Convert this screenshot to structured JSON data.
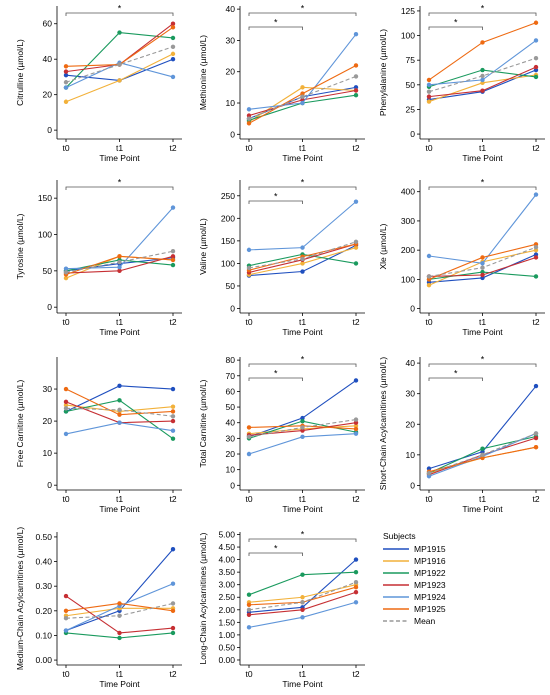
{
  "chart_data": {
    "type": "line",
    "x_categories": [
      "t0",
      "t1",
      "t2"
    ],
    "xlabel": "Time Point",
    "legend": {
      "title": "Subjects",
      "placement": "right of bottom row",
      "entries": [
        {
          "name": "MP1915",
          "color": "#1f4fbf",
          "dashed": false
        },
        {
          "name": "MP1916",
          "color": "#f2b13a",
          "dashed": false
        },
        {
          "name": "MP1922",
          "color": "#1a9a5e",
          "dashed": false
        },
        {
          "name": "MP1923",
          "color": "#c62f33",
          "dashed": false
        },
        {
          "name": "MP1924",
          "color": "#5f95d9",
          "dashed": false
        },
        {
          "name": "MP1925",
          "color": "#ee6a12",
          "dashed": false
        },
        {
          "name": "Mean",
          "color": "#999999",
          "dashed": true
        }
      ]
    },
    "panels": [
      {
        "ylabel": "Citrulline (µmol/L)",
        "ylim": [
          -5,
          70
        ],
        "yticks": [
          0,
          20,
          40,
          60
        ],
        "tick_labels": [
          "0",
          "20",
          "40",
          "60"
        ],
        "series": [
          {
            "name": "MP1915",
            "values": [
              31,
              28,
              40
            ]
          },
          {
            "name": "MP1916",
            "values": [
              16,
              28,
              43
            ]
          },
          {
            "name": "MP1922",
            "values": [
              24,
              55,
              52
            ]
          },
          {
            "name": "MP1923",
            "values": [
              33,
              37,
              60
            ]
          },
          {
            "name": "MP1924",
            "values": [
              24,
              38,
              30
            ]
          },
          {
            "name": "MP1925",
            "values": [
              36,
              37,
              58
            ]
          },
          {
            "name": "Mean",
            "values": [
              27,
              37,
              47
            ]
          }
        ],
        "sig": [
          {
            "from": 0,
            "to": 2,
            "label": "*"
          }
        ]
      },
      {
        "ylabel": "Methionine (µmol/L)",
        "ylim": [
          -1.5,
          41
        ],
        "yticks": [
          0,
          10,
          20,
          30,
          40
        ],
        "tick_labels": [
          "0",
          "10",
          "20",
          "30",
          "40"
        ],
        "series": [
          {
            "name": "MP1915",
            "values": [
              5,
              12,
              15
            ]
          },
          {
            "name": "MP1916",
            "values": [
              4,
              15,
              14
            ]
          },
          {
            "name": "MP1922",
            "values": [
              4.5,
              10,
              12.5
            ]
          },
          {
            "name": "MP1923",
            "values": [
              6,
              11,
              14
            ]
          },
          {
            "name": "MP1924",
            "values": [
              8,
              10,
              32
            ]
          },
          {
            "name": "MP1925",
            "values": [
              3.5,
              13,
              22
            ]
          },
          {
            "name": "Mean",
            "values": [
              5,
              12,
              18.5
            ]
          }
        ],
        "sig": [
          {
            "from": 0,
            "to": 2,
            "label": "*"
          },
          {
            "from": 0,
            "to": 1,
            "label": "*"
          }
        ]
      },
      {
        "ylabel": "Phenylalanine (µmol/L)",
        "ylim": [
          -5,
          130
        ],
        "yticks": [
          0,
          25,
          50,
          75,
          100,
          125
        ],
        "tick_labels": [
          "0",
          "25",
          "50",
          "75",
          "100",
          "125"
        ],
        "series": [
          {
            "name": "MP1915",
            "values": [
              35,
              43,
              65
            ]
          },
          {
            "name": "MP1916",
            "values": [
              33,
              52,
              60
            ]
          },
          {
            "name": "MP1922",
            "values": [
              48,
              65,
              58
            ]
          },
          {
            "name": "MP1923",
            "values": [
              38,
              44,
              68
            ]
          },
          {
            "name": "MP1924",
            "values": [
              50,
              55,
              95
            ]
          },
          {
            "name": "MP1925",
            "values": [
              55,
              93,
              113
            ]
          },
          {
            "name": "Mean",
            "values": [
              43,
              59,
              77
            ]
          }
        ],
        "sig": [
          {
            "from": 0,
            "to": 2,
            "label": "*"
          },
          {
            "from": 0,
            "to": 1,
            "label": "*"
          }
        ]
      },
      {
        "ylabel": "Tyrosine (µmol/L)",
        "ylim": [
          -8,
          175
        ],
        "yticks": [
          0,
          50,
          100,
          150
        ],
        "tick_labels": [
          "0",
          "50",
          "100",
          "150"
        ],
        "series": [
          {
            "name": "MP1915",
            "values": [
              50,
              60,
              68
            ]
          },
          {
            "name": "MP1916",
            "values": [
              40,
              70,
              65
            ]
          },
          {
            "name": "MP1922",
            "values": [
              50,
              65,
              58
            ]
          },
          {
            "name": "MP1923",
            "values": [
              47,
              50,
              70
            ]
          },
          {
            "name": "MP1924",
            "values": [
              53,
              55,
              137
            ]
          },
          {
            "name": "MP1925",
            "values": [
              45,
              70,
              65
            ]
          },
          {
            "name": "Mean",
            "values": [
              48,
              62,
              77
            ]
          }
        ],
        "sig": [
          {
            "from": 0,
            "to": 2,
            "label": "*"
          }
        ]
      },
      {
        "ylabel": "Valine (µmol/L)",
        "ylim": [
          -10,
          285
        ],
        "yticks": [
          0,
          50,
          100,
          150,
          200,
          250
        ],
        "tick_labels": [
          "0",
          "50",
          "100",
          "150",
          "200",
          "250"
        ],
        "series": [
          {
            "name": "MP1915",
            "values": [
              73,
              82,
              140
            ]
          },
          {
            "name": "MP1916",
            "values": [
              75,
              100,
              135
            ]
          },
          {
            "name": "MP1922",
            "values": [
              95,
              120,
              100
            ]
          },
          {
            "name": "MP1923",
            "values": [
              80,
              108,
              143
            ]
          },
          {
            "name": "MP1924",
            "values": [
              130,
              135,
              237
            ]
          },
          {
            "name": "MP1925",
            "values": [
              85,
              115,
              143
            ]
          },
          {
            "name": "Mean",
            "values": [
              90,
              110,
              148
            ]
          }
        ],
        "sig": [
          {
            "from": 0,
            "to": 2,
            "label": "*"
          },
          {
            "from": 0,
            "to": 1,
            "label": "*"
          }
        ]
      },
      {
        "ylabel": "Xle (µmol/L)",
        "ylim": [
          -15,
          440
        ],
        "yticks": [
          0,
          100,
          200,
          300,
          400
        ],
        "tick_labels": [
          "0",
          "100",
          "200",
          "300",
          "400"
        ],
        "series": [
          {
            "name": "MP1915",
            "values": [
              90,
              105,
              185
            ]
          },
          {
            "name": "MP1916",
            "values": [
              80,
              160,
              200
            ]
          },
          {
            "name": "MP1922",
            "values": [
              100,
              125,
              110
            ]
          },
          {
            "name": "MP1923",
            "values": [
              110,
              115,
              175
            ]
          },
          {
            "name": "MP1924",
            "values": [
              180,
              155,
              390
            ]
          },
          {
            "name": "MP1925",
            "values": [
              100,
              175,
              220
            ]
          },
          {
            "name": "Mean",
            "values": [
              110,
              140,
              210
            ]
          }
        ],
        "sig": [
          {
            "from": 0,
            "to": 2,
            "label": "*"
          }
        ]
      },
      {
        "ylabel": "Free Carnitine (µmol/L)",
        "ylim": [
          -1.5,
          40
        ],
        "yticks": [
          0,
          10,
          20,
          30
        ],
        "tick_labels": [
          "0",
          "10",
          "20",
          "30"
        ],
        "series": [
          {
            "name": "MP1915",
            "values": [
              23,
              31,
              30
            ]
          },
          {
            "name": "MP1916",
            "values": [
              25,
              23,
              24.5
            ]
          },
          {
            "name": "MP1922",
            "values": [
              23,
              26.5,
              14.5
            ]
          },
          {
            "name": "MP1923",
            "values": [
              26,
              19.5,
              20
            ]
          },
          {
            "name": "MP1924",
            "values": [
              16,
              19.5,
              17
            ]
          },
          {
            "name": "MP1925",
            "values": [
              30,
              22,
              23
            ]
          },
          {
            "name": "Mean",
            "values": [
              24,
              23.5,
              21.5
            ]
          }
        ],
        "sig": []
      },
      {
        "ylabel": "Total Carnitine (µmol/L)",
        "ylim": [
          -3,
          82
        ],
        "yticks": [
          0,
          10,
          20,
          30,
          40,
          50,
          60,
          70,
          80
        ],
        "tick_labels": [
          "0",
          "10",
          "20",
          "30",
          "40",
          "50",
          "60",
          "70",
          "80"
        ],
        "series": [
          {
            "name": "MP1915",
            "values": [
              31,
              43,
              67
            ]
          },
          {
            "name": "MP1916",
            "values": [
              33,
              36,
              38
            ]
          },
          {
            "name": "MP1922",
            "values": [
              30,
              41,
              34
            ]
          },
          {
            "name": "MP1923",
            "values": [
              32,
              35,
              40
            ]
          },
          {
            "name": "MP1924",
            "values": [
              20,
              31,
              33
            ]
          },
          {
            "name": "MP1925",
            "values": [
              37,
              38,
              36
            ]
          },
          {
            "name": "Mean",
            "values": [
              31,
              37,
              42
            ]
          }
        ],
        "sig": [
          {
            "from": 0,
            "to": 2,
            "label": "*"
          },
          {
            "from": 0,
            "to": 1,
            "label": "*"
          }
        ]
      },
      {
        "ylabel": "Short-Chain Acylcarnitines (µmol/L)",
        "ylim": [
          -1.5,
          42
        ],
        "yticks": [
          0,
          10,
          20,
          30,
          40
        ],
        "tick_labels": [
          "0",
          "10",
          "20",
          "30",
          "40"
        ],
        "series": [
          {
            "name": "MP1915",
            "values": [
              5.5,
              11,
              32.5
            ]
          },
          {
            "name": "MP1916",
            "values": [
              4,
              9,
              12.5
            ]
          },
          {
            "name": "MP1922",
            "values": [
              4,
              12,
              16
            ]
          },
          {
            "name": "MP1923",
            "values": [
              3.5,
              10,
              15.5
            ]
          },
          {
            "name": "MP1924",
            "values": [
              3,
              9.5,
              17
            ]
          },
          {
            "name": "MP1925",
            "values": [
              4.5,
              9,
              12.5
            ]
          },
          {
            "name": "Mean",
            "values": [
              4,
              10,
              17
            ]
          }
        ],
        "sig": [
          {
            "from": 0,
            "to": 2,
            "label": "*"
          },
          {
            "from": 0,
            "to": 1,
            "label": "*"
          }
        ]
      },
      {
        "ylabel": "Medium-Chain Acylcarnitines (µmol/L)",
        "ylim": [
          -0.02,
          0.52
        ],
        "yticks": [
          0,
          0.1,
          0.2,
          0.3,
          0.4,
          0.5
        ],
        "tick_labels": [
          "0.00",
          "0.10",
          "0.20",
          "0.30",
          "0.40",
          "0.50"
        ],
        "series": [
          {
            "name": "MP1915",
            "values": [
              0.12,
              0.2,
              0.45
            ]
          },
          {
            "name": "MP1916",
            "values": [
              0.18,
              0.21,
              0.21
            ]
          },
          {
            "name": "MP1922",
            "values": [
              0.11,
              0.09,
              0.11
            ]
          },
          {
            "name": "MP1923",
            "values": [
              0.26,
              0.11,
              0.13
            ]
          },
          {
            "name": "MP1924",
            "values": [
              0.12,
              0.22,
              0.31
            ]
          },
          {
            "name": "MP1925",
            "values": [
              0.2,
              0.23,
              0.2
            ]
          },
          {
            "name": "Mean",
            "values": [
              0.17,
              0.18,
              0.23
            ]
          }
        ],
        "sig": []
      },
      {
        "ylabel": "Long-Chain Acylcarnitines (µmol/L)",
        "ylim": [
          -0.2,
          5.1
        ],
        "yticks": [
          0,
          0.5,
          1,
          1.5,
          2,
          2.5,
          3,
          3.5,
          4,
          4.5,
          5
        ],
        "tick_labels": [
          "0.00",
          "0.50",
          "1.00",
          "1.50",
          "2.00",
          "2.50",
          "3.00",
          "3.50",
          "4.00",
          "4.50",
          "5.00"
        ],
        "series": [
          {
            "name": "MP1915",
            "values": [
              1.9,
              2.1,
              4.0
            ]
          },
          {
            "name": "MP1916",
            "values": [
              2.3,
              2.5,
              3.0
            ]
          },
          {
            "name": "MP1922",
            "values": [
              2.6,
              3.4,
              3.5
            ]
          },
          {
            "name": "MP1923",
            "values": [
              1.8,
              2.0,
              2.7
            ]
          },
          {
            "name": "MP1924",
            "values": [
              1.3,
              1.7,
              2.3
            ]
          },
          {
            "name": "MP1925",
            "values": [
              2.2,
              2.3,
              2.9
            ]
          },
          {
            "name": "Mean",
            "values": [
              2.0,
              2.3,
              3.1
            ]
          }
        ],
        "sig": [
          {
            "from": 0,
            "to": 2,
            "label": "*"
          },
          {
            "from": 0,
            "to": 1,
            "label": "*"
          }
        ]
      }
    ]
  }
}
